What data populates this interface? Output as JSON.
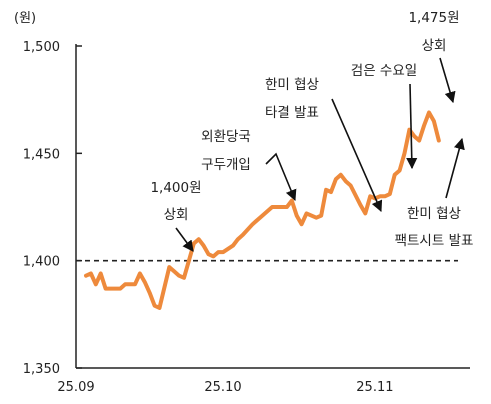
{
  "chart_data": {
    "type": "line",
    "title": "",
    "xlabel": "",
    "unit_label": "(원)",
    "ylim": [
      1350,
      1500
    ],
    "yticks": [
      "1,500",
      "1,450",
      "1,400",
      "1,350"
    ],
    "xticks": [
      {
        "label": "25.09",
        "day": 0
      },
      {
        "label": "25.10",
        "day": 30
      },
      {
        "label": "25.11",
        "day": 61
      }
    ],
    "reference_line": {
      "value": 1400,
      "style": "dashed"
    },
    "grid": false,
    "series": [
      {
        "color": "#EE8A3C",
        "points": [
          [
            0,
            1393
          ],
          [
            1,
            1394
          ],
          [
            2,
            1389
          ],
          [
            3,
            1394
          ],
          [
            4,
            1387
          ],
          [
            5,
            1387
          ],
          [
            6,
            1387
          ],
          [
            7,
            1387
          ],
          [
            8,
            1389
          ],
          [
            9,
            1389
          ],
          [
            10,
            1389
          ],
          [
            11,
            1394
          ],
          [
            12,
            1390
          ],
          [
            13,
            1385
          ],
          [
            14,
            1379
          ],
          [
            15,
            1378
          ],
          [
            17,
            1397
          ],
          [
            18,
            1395
          ],
          [
            19,
            1393
          ],
          [
            20,
            1392
          ],
          [
            21,
            1400
          ],
          [
            22,
            1408
          ],
          [
            23,
            1410
          ],
          [
            24,
            1407
          ],
          [
            25,
            1403
          ],
          [
            26,
            1402
          ],
          [
            27,
            1404
          ],
          [
            28,
            1404
          ],
          [
            30,
            1407
          ],
          [
            31,
            1410
          ],
          [
            32,
            1412
          ],
          [
            34,
            1417
          ],
          [
            36,
            1421
          ],
          [
            38,
            1425
          ],
          [
            40,
            1425
          ],
          [
            41,
            1425
          ],
          [
            42,
            1428
          ],
          [
            43,
            1421
          ],
          [
            44,
            1417
          ],
          [
            45,
            1422
          ],
          [
            46,
            1421
          ],
          [
            47,
            1420
          ],
          [
            48,
            1421
          ],
          [
            49,
            1433
          ],
          [
            50,
            1432
          ],
          [
            51,
            1438
          ],
          [
            52,
            1440
          ],
          [
            53,
            1437
          ],
          [
            54,
            1435
          ],
          [
            56,
            1426
          ],
          [
            57,
            1422
          ],
          [
            58,
            1430
          ],
          [
            59,
            1429
          ],
          [
            60,
            1430
          ],
          [
            61,
            1430
          ],
          [
            62,
            1431
          ],
          [
            63,
            1440
          ],
          [
            64,
            1442
          ],
          [
            65,
            1450
          ],
          [
            66,
            1461
          ],
          [
            67,
            1458
          ],
          [
            68,
            1456
          ],
          [
            69,
            1463
          ],
          [
            70,
            1469
          ],
          [
            71,
            1465
          ],
          [
            72,
            1456
          ]
        ]
      }
    ],
    "annotations": [
      {
        "lines": [
          "1,400원",
          "상회"
        ],
        "target_day": 21,
        "target_value": 1400
      },
      {
        "lines": [
          "외환당국",
          "구두개입"
        ],
        "target_day": 41,
        "target_value": 1425
      },
      {
        "lines": [
          "한미 협상",
          "타결 발표"
        ],
        "target_day": 57,
        "target_value": 1422
      },
      {
        "lines": [
          "검은 수요일"
        ],
        "target_day": 63,
        "target_value": 1440
      },
      {
        "lines": [
          "1,475원",
          "상회"
        ],
        "target_day": 70,
        "target_value": 1469
      },
      {
        "lines": [
          "한미 협상",
          "팩트시트 발표"
        ],
        "target_day": 72,
        "target_value": 1456
      }
    ]
  }
}
